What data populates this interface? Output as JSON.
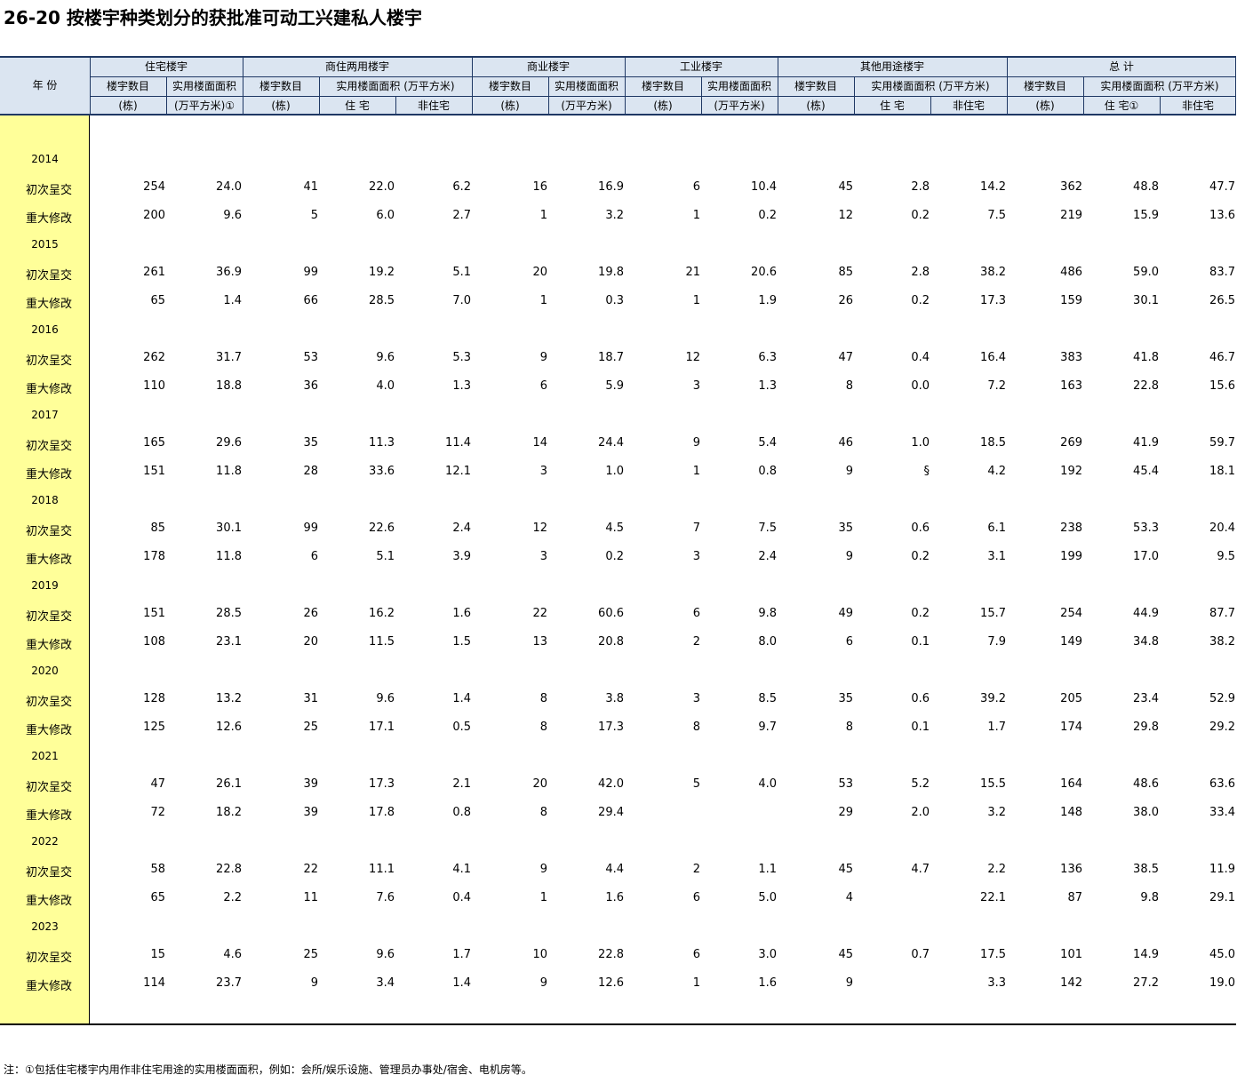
{
  "title": "26-20  按楼宇种类划分的获批准可动工兴建私人楼宇",
  "header": {
    "year_col": "年  份",
    "groups": [
      "住宅楼宇",
      "商住两用楼宇",
      "商业楼宇",
      "工业楼宇",
      "其他用途楼宇",
      "总  计"
    ],
    "sub": {
      "bldg_count": "楼宇数目",
      "area": "实用楼面面积",
      "area_unit": "实用楼面面积 (万平方米)",
      "unit_dong": "(栋)",
      "unit_wan_fn": "(万平方米)①",
      "unit_wan": "(万平方米)",
      "res": "住  宅",
      "res_fn": "住  宅①",
      "nonres": "非住宅"
    }
  },
  "rows": [
    {
      "year": "2014",
      "first": {
        "label": "初次呈交",
        "v": [
          "254",
          "24.0",
          "41",
          "22.0",
          "6.2",
          "16",
          "16.9",
          "6",
          "10.4",
          "45",
          "2.8",
          "14.2",
          "362",
          "48.8",
          "47.7"
        ]
      },
      "major": {
        "label": "重大修改",
        "v": [
          "200",
          "9.6",
          "5",
          "6.0",
          "2.7",
          "1",
          "3.2",
          "1",
          "0.2",
          "12",
          "0.2",
          "7.5",
          "219",
          "15.9",
          "13.6"
        ]
      }
    },
    {
      "year": "2015",
      "first": {
        "label": "初次呈交",
        "v": [
          "261",
          "36.9",
          "99",
          "19.2",
          "5.1",
          "20",
          "19.8",
          "21",
          "20.6",
          "85",
          "2.8",
          "38.2",
          "486",
          "59.0",
          "83.7"
        ]
      },
      "major": {
        "label": "重大修改",
        "v": [
          "65",
          "1.4",
          "66",
          "28.5",
          "7.0",
          "1",
          "0.3",
          "1",
          "1.9",
          "26",
          "0.2",
          "17.3",
          "159",
          "30.1",
          "26.5"
        ]
      }
    },
    {
      "year": "2016",
      "first": {
        "label": "初次呈交",
        "v": [
          "262",
          "31.7",
          "53",
          "9.6",
          "5.3",
          "9",
          "18.7",
          "12",
          "6.3",
          "47",
          "0.4",
          "16.4",
          "383",
          "41.8",
          "46.7"
        ]
      },
      "major": {
        "label": "重大修改",
        "v": [
          "110",
          "18.8",
          "36",
          "4.0",
          "1.3",
          "6",
          "5.9",
          "3",
          "1.3",
          "8",
          "0.0",
          "7.2",
          "163",
          "22.8",
          "15.6"
        ]
      }
    },
    {
      "year": "2017",
      "first": {
        "label": "初次呈交",
        "v": [
          "165",
          "29.6",
          "35",
          "11.3",
          "11.4",
          "14",
          "24.4",
          "9",
          "5.4",
          "46",
          "1.0",
          "18.5",
          "269",
          "41.9",
          "59.7"
        ]
      },
      "major": {
        "label": "重大修改",
        "v": [
          "151",
          "11.8",
          "28",
          "33.6",
          "12.1",
          "3",
          "1.0",
          "1",
          "0.8",
          "9",
          "§",
          "4.2",
          "192",
          "45.4",
          "18.1"
        ]
      }
    },
    {
      "year": "2018",
      "first": {
        "label": "初次呈交",
        "v": [
          "85",
          "30.1",
          "99",
          "22.6",
          "2.4",
          "12",
          "4.5",
          "7",
          "7.5",
          "35",
          "0.6",
          "6.1",
          "238",
          "53.3",
          "20.4"
        ]
      },
      "major": {
        "label": "重大修改",
        "v": [
          "178",
          "11.8",
          "6",
          "5.1",
          "3.9",
          "3",
          "0.2",
          "3",
          "2.4",
          "9",
          "0.2",
          "3.1",
          "199",
          "17.0",
          "9.5"
        ]
      }
    },
    {
      "year": "2019",
      "first": {
        "label": "初次呈交",
        "v": [
          "151",
          "28.5",
          "26",
          "16.2",
          "1.6",
          "22",
          "60.6",
          "6",
          "9.8",
          "49",
          "0.2",
          "15.7",
          "254",
          "44.9",
          "87.7"
        ]
      },
      "major": {
        "label": "重大修改",
        "v": [
          "108",
          "23.1",
          "20",
          "11.5",
          "1.5",
          "13",
          "20.8",
          "2",
          "8.0",
          "6",
          "0.1",
          "7.9",
          "149",
          "34.8",
          "38.2"
        ]
      }
    },
    {
      "year": "2020",
      "first": {
        "label": "初次呈交",
        "v": [
          "128",
          "13.2",
          "31",
          "9.6",
          "1.4",
          "8",
          "3.8",
          "3",
          "8.5",
          "35",
          "0.6",
          "39.2",
          "205",
          "23.4",
          "52.9"
        ]
      },
      "major": {
        "label": "重大修改",
        "v": [
          "125",
          "12.6",
          "25",
          "17.1",
          "0.5",
          "8",
          "17.3",
          "8",
          "9.7",
          "8",
          "0.1",
          "1.7",
          "174",
          "29.8",
          "29.2"
        ]
      }
    },
    {
      "year": "2021",
      "first": {
        "label": "初次呈交",
        "v": [
          "47",
          "26.1",
          "39",
          "17.3",
          "2.1",
          "20",
          "42.0",
          "5",
          "4.0",
          "53",
          "5.2",
          "15.5",
          "164",
          "48.6",
          "63.6"
        ]
      },
      "major": {
        "label": "重大修改",
        "v": [
          "72",
          "18.2",
          "39",
          "17.8",
          "0.8",
          "8",
          "29.4",
          "",
          "",
          "29",
          "2.0",
          "3.2",
          "148",
          "38.0",
          "33.4"
        ]
      }
    },
    {
      "year": "2022",
      "first": {
        "label": "初次呈交",
        "v": [
          "58",
          "22.8",
          "22",
          "11.1",
          "4.1",
          "9",
          "4.4",
          "2",
          "1.1",
          "45",
          "4.7",
          "2.2",
          "136",
          "38.5",
          "11.9"
        ]
      },
      "major": {
        "label": "重大修改",
        "v": [
          "65",
          "2.2",
          "11",
          "7.6",
          "0.4",
          "1",
          "1.6",
          "6",
          "5.0",
          "4",
          "",
          "22.1",
          "87",
          "9.8",
          "29.1"
        ]
      }
    },
    {
      "year": "2023",
      "first": {
        "label": "初次呈交",
        "v": [
          "15",
          "4.6",
          "25",
          "9.6",
          "1.7",
          "10",
          "22.8",
          "6",
          "3.0",
          "45",
          "0.7",
          "17.5",
          "101",
          "14.9",
          "45.0"
        ]
      },
      "major": {
        "label": "重大修改",
        "v": [
          "114",
          "23.7",
          "9",
          "3.4",
          "1.4",
          "9",
          "12.6",
          "1",
          "1.6",
          "9",
          "",
          "3.3",
          "142",
          "27.2",
          "19.0"
        ]
      }
    }
  ],
  "note": "注：①包括住宅楼宇内用作非住宅用途的实用楼面面积，例如：会所/娱乐设施、管理员办事处/宿舍、电机房等。"
}
